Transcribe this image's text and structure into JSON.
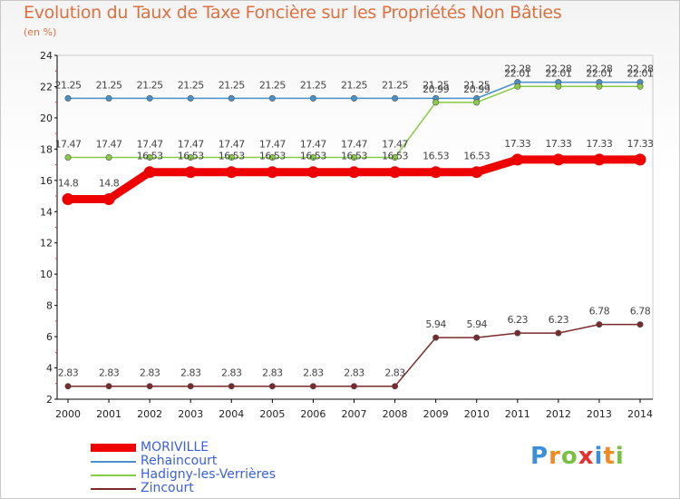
{
  "chart_data": {
    "type": "line",
    "title": "Evolution du Taux de Taxe Foncière sur les Propriétés Non Bâties",
    "ylabel": "(en %)",
    "xlabel": "",
    "ylim": [
      2,
      24
    ],
    "yticks": [
      2,
      4,
      6,
      8,
      10,
      12,
      14,
      16,
      18,
      20,
      22,
      24
    ],
    "categories": [
      "2000",
      "2001",
      "2002",
      "2003",
      "2004",
      "2005",
      "2006",
      "2007",
      "2008",
      "2009",
      "2010",
      "2011",
      "2012",
      "2013",
      "2014"
    ],
    "series": [
      {
        "name": "Rehaincourt",
        "color": "#4a90c8",
        "width": 1.5,
        "values": [
          21.25,
          21.25,
          21.25,
          21.25,
          21.25,
          21.25,
          21.25,
          21.25,
          21.25,
          21.25,
          21.25,
          22.28,
          22.28,
          22.28,
          22.28
        ],
        "labels": [
          "21.25",
          "21.25",
          "21.25",
          "21.25",
          "21.25",
          "21.25",
          "21.25",
          "21.25",
          "21.25",
          "21.25",
          "21.25",
          "22.28",
          "22.28",
          "22.28",
          "22.28"
        ]
      },
      {
        "name": "Hadigny-les-Verrières",
        "color": "#88cc44",
        "width": 1.5,
        "values": [
          17.47,
          17.47,
          17.47,
          17.47,
          17.47,
          17.47,
          17.47,
          17.47,
          17.47,
          20.99,
          20.99,
          22.01,
          22.01,
          22.01,
          22.01
        ],
        "labels": [
          "17.47",
          "17.47",
          "17.47",
          "17.47",
          "17.47",
          "17.47",
          "17.47",
          "17.47",
          "17.47",
          "20.99",
          "20.99",
          "22.01",
          "22.01",
          "22.01",
          "22.01"
        ]
      },
      {
        "name": "MORIVILLE",
        "color": "#ee0000",
        "width": 9,
        "values": [
          14.8,
          14.8,
          16.53,
          16.53,
          16.53,
          16.53,
          16.53,
          16.53,
          16.53,
          16.53,
          16.53,
          17.33,
          17.33,
          17.33,
          17.33
        ],
        "labels": [
          "14.8",
          "14.8",
          "16.53",
          "16.53",
          "16.53",
          "16.53",
          "16.53",
          "16.53",
          "16.53",
          "16.53",
          "16.53",
          "17.33",
          "17.33",
          "17.33",
          "17.33"
        ]
      },
      {
        "name": "Zincourt",
        "color": "#7a2a2a",
        "width": 1.5,
        "values": [
          2.83,
          2.83,
          2.83,
          2.83,
          2.83,
          2.83,
          2.83,
          2.83,
          2.83,
          5.94,
          5.94,
          6.23,
          6.23,
          6.78,
          6.78
        ],
        "labels": [
          "2.83",
          "2.83",
          "2.83",
          "2.83",
          "2.83",
          "2.83",
          "2.83",
          "2.83",
          "2.83",
          "5.94",
          "5.94",
          "6.23",
          "6.23",
          "6.78",
          "6.78"
        ]
      }
    ],
    "legend": [
      {
        "name": "MORIVILLE",
        "color": "#ee0000",
        "width": 9
      },
      {
        "name": "Rehaincourt",
        "color": "#4a90c8",
        "width": 2
      },
      {
        "name": "Hadigny-les-Verrières",
        "color": "#88cc44",
        "width": 2
      },
      {
        "name": "Zincourt",
        "color": "#7a2a2a",
        "width": 2
      }
    ],
    "legend_position": "bottom-left",
    "grid": false
  },
  "logo": {
    "letters": [
      "P",
      "r",
      "o",
      "x",
      "i",
      "t",
      "i"
    ],
    "colors": [
      "#3a8fd8",
      "#f08a24",
      "#7ac143",
      "#e83030",
      "#3a8fd8",
      "#f08a24",
      "#7ac143"
    ]
  }
}
